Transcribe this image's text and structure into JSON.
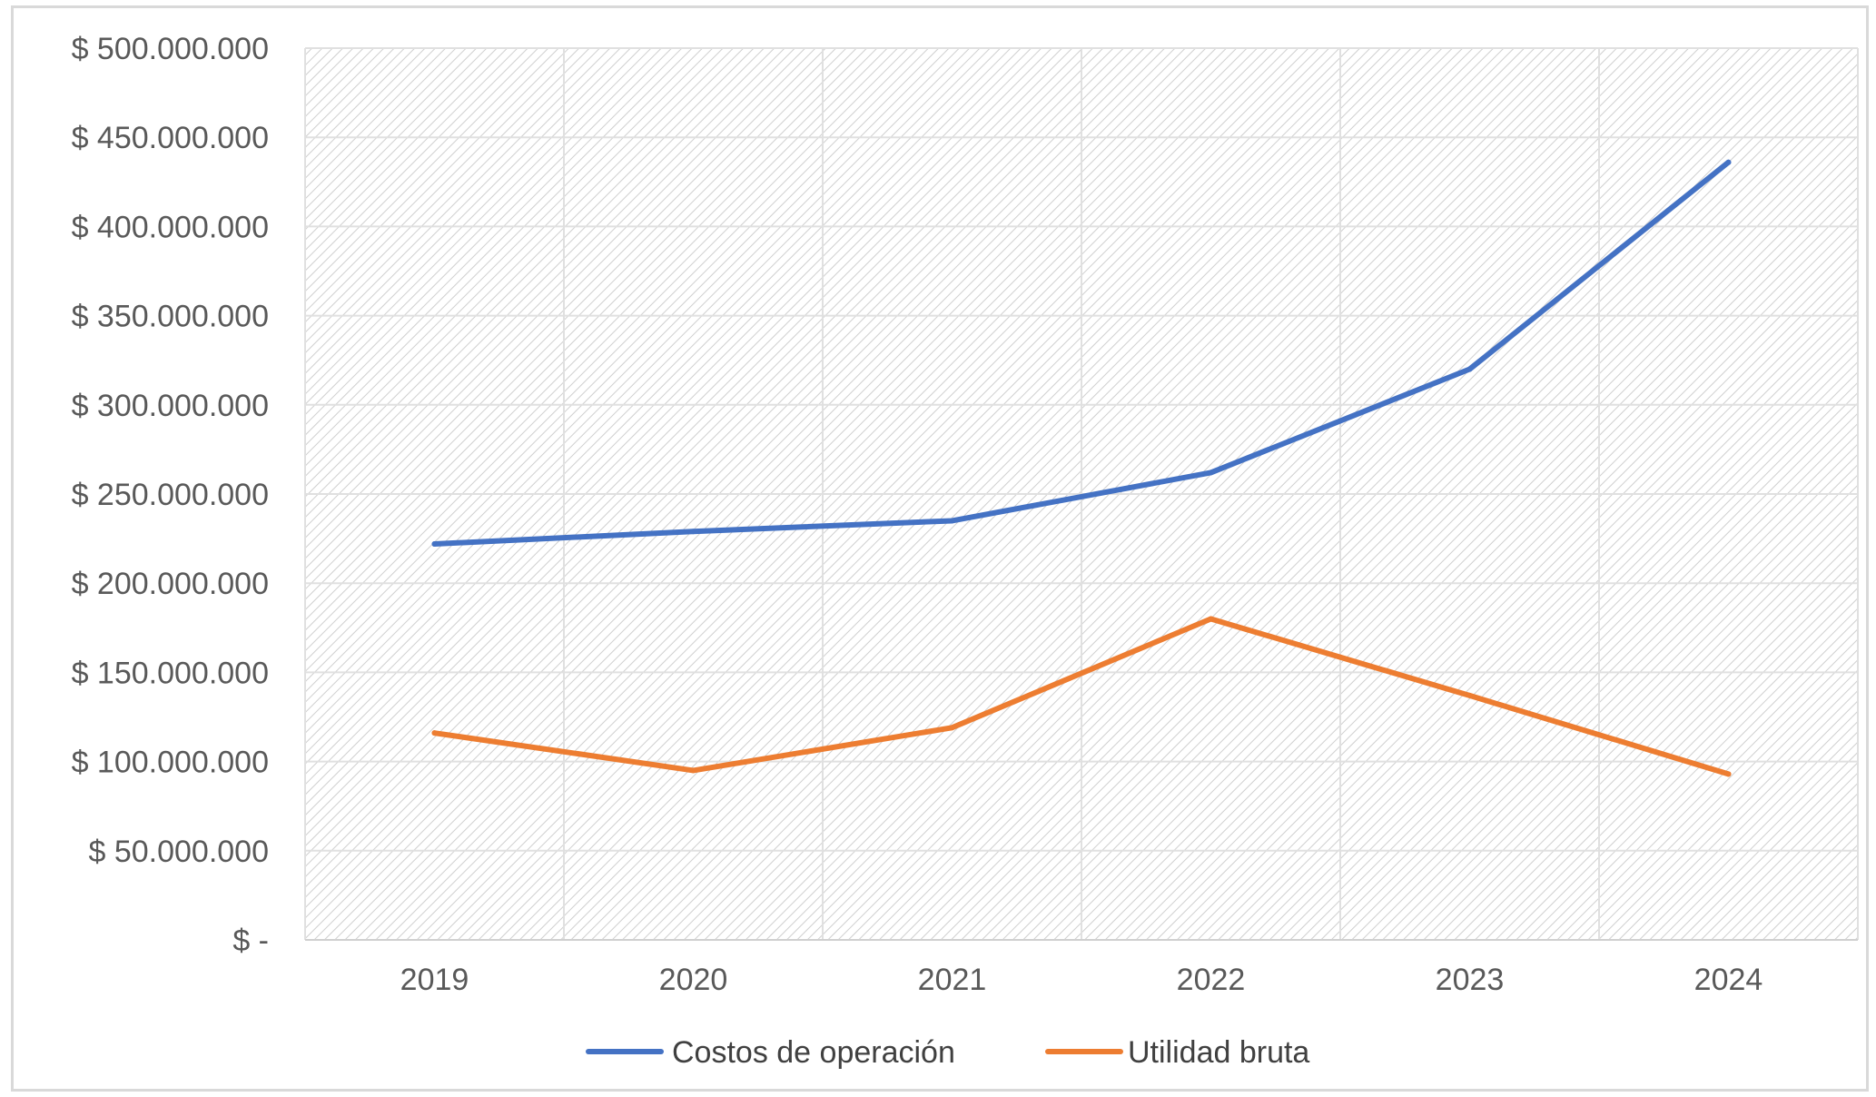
{
  "chart_data": {
    "type": "line",
    "title": "",
    "xlabel": "",
    "ylabel": "",
    "categories": [
      "2019",
      "2020",
      "2021",
      "2022",
      "2023",
      "2024"
    ],
    "ylim": [
      0,
      500000000
    ],
    "yticks": [
      {
        "value": 0,
        "label": "$ -"
      },
      {
        "value": 50000000,
        "label": "$ 50.000.000"
      },
      {
        "value": 100000000,
        "label": "$ 100.000.000"
      },
      {
        "value": 150000000,
        "label": "$ 150.000.000"
      },
      {
        "value": 200000000,
        "label": "$ 200.000.000"
      },
      {
        "value": 250000000,
        "label": "$ 250.000.000"
      },
      {
        "value": 300000000,
        "label": "$ 300.000.000"
      },
      {
        "value": 350000000,
        "label": "$ 350.000.000"
      },
      {
        "value": 400000000,
        "label": "$ 400.000.000"
      },
      {
        "value": 450000000,
        "label": "$ 450.000.000"
      },
      {
        "value": 500000000,
        "label": "$ 500.000.000"
      }
    ],
    "grid": true,
    "legend": "bottom",
    "series": [
      {
        "name": "Costos de operación",
        "color": "#4472c4",
        "values": [
          222000000,
          229000000,
          235000000,
          262000000,
          320000000,
          436000000
        ]
      },
      {
        "name": "Utilidad bruta",
        "color": "#ed7d31",
        "values": [
          116000000,
          95000000,
          119000000,
          180000000,
          137000000,
          93000000
        ]
      }
    ]
  }
}
